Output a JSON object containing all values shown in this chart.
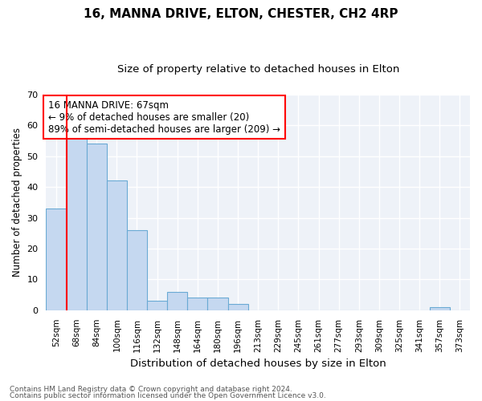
{
  "title": "16, MANNA DRIVE, ELTON, CHESTER, CH2 4RP",
  "subtitle": "Size of property relative to detached houses in Elton",
  "xlabel": "Distribution of detached houses by size in Elton",
  "ylabel": "Number of detached properties",
  "footnote1": "Contains HM Land Registry data © Crown copyright and database right 2024.",
  "footnote2": "Contains public sector information licensed under the Open Government Licence v3.0.",
  "annotation_line1": "16 MANNA DRIVE: 67sqm",
  "annotation_line2": "← 9% of detached houses are smaller (20)",
  "annotation_line3": "89% of semi-detached houses are larger (209) →",
  "bar_labels": [
    "52sqm",
    "68sqm",
    "84sqm",
    "100sqm",
    "116sqm",
    "132sqm",
    "148sqm",
    "164sqm",
    "180sqm",
    "196sqm",
    "213sqm",
    "229sqm",
    "245sqm",
    "261sqm",
    "277sqm",
    "293sqm",
    "309sqm",
    "325sqm",
    "341sqm",
    "357sqm",
    "373sqm"
  ],
  "bar_values": [
    33,
    58,
    54,
    42,
    26,
    3,
    6,
    4,
    4,
    2,
    0,
    0,
    0,
    0,
    0,
    0,
    0,
    0,
    0,
    1,
    0
  ],
  "bar_color": "#c5d8f0",
  "bar_edge_color": "#6aaad4",
  "marker_color": "red",
  "ylim": [
    0,
    70
  ],
  "yticks": [
    0,
    10,
    20,
    30,
    40,
    50,
    60,
    70
  ],
  "annotation_box_color": "white",
  "annotation_box_edge": "red",
  "bg_color": "#eef2f8",
  "grid_color": "#ffffff",
  "title_fontsize": 11,
  "subtitle_fontsize": 9.5
}
